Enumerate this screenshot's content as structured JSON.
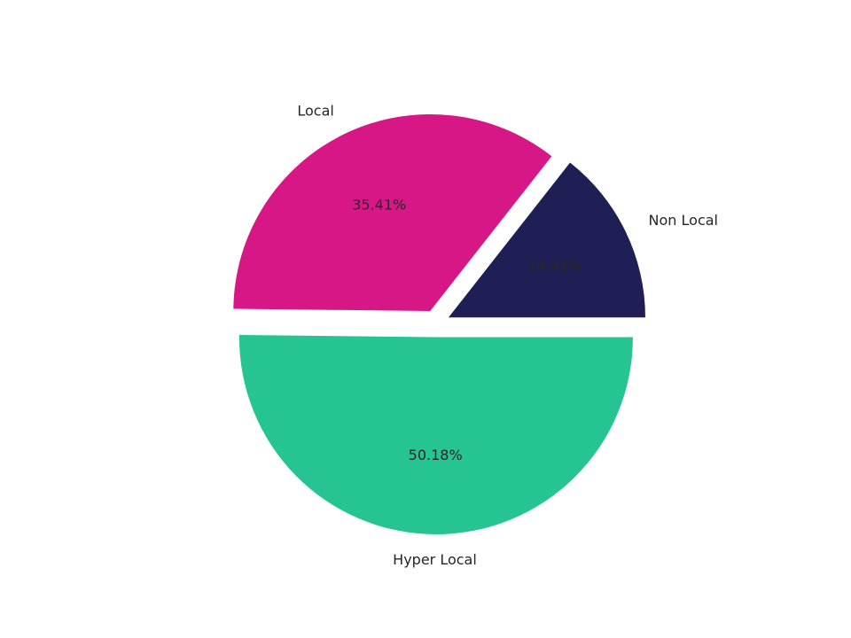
{
  "chart_data": {
    "type": "pie",
    "title": "",
    "start_angle_deg": 0,
    "direction": "counterclockwise",
    "slices": [
      {
        "label": "Non Local",
        "value": 14.41,
        "pct_label": "14.41%",
        "color": "#1f1f55",
        "explode": 0.07
      },
      {
        "label": "Local",
        "value": 35.41,
        "pct_label": "35.41%",
        "color": "#d71786",
        "explode": 0.07
      },
      {
        "label": "Hyper Local",
        "value": 50.18,
        "pct_label": "50.18%",
        "color": "#25c492",
        "explode": 0.07
      }
    ]
  }
}
